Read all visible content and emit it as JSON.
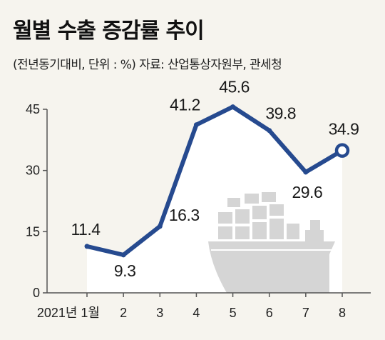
{
  "header": {
    "title": "월별 수출 증감률 추이",
    "subtitle": "(전년동기대비, 단위 : %)  자료: 산업통상자원부, 관세청"
  },
  "colors": {
    "line": "#264a8f",
    "background": "#f6f4ee",
    "area": "#ffffff",
    "ship": "#d5d5d5"
  },
  "decoration": {
    "ship": "cargo-ship-illustration"
  },
  "chart_data": {
    "type": "line",
    "title": "월별 수출 증감률 추이",
    "subtitle": "(전년동기대비, 단위 : %)",
    "source": "자료: 산업통상자원부, 관세청",
    "categories": [
      "2021년 1월",
      "2",
      "3",
      "4",
      "5",
      "6",
      "7",
      "8"
    ],
    "series": [
      {
        "values": [
          11.4,
          9.3,
          16.3,
          41.2,
          45.6,
          39.8,
          29.6,
          34.9
        ]
      }
    ],
    "data_labels": [
      "11.4",
      "9.3",
      "16.3",
      "41.2",
      "45.6",
      "39.8",
      "29.6",
      "34.9"
    ],
    "yticks": [
      0,
      15,
      30,
      45
    ],
    "ylim": [
      0,
      45
    ],
    "grid": false,
    "last_point_marker": "hollow-circle"
  }
}
